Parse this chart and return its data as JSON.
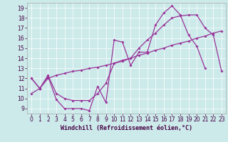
{
  "background_color": "#cceaea",
  "line_color": "#993399",
  "marker": "D",
  "markersize": 2.0,
  "linewidth": 0.9,
  "xlabel": "Windchill (Refroidissement éolien,°C)",
  "xlabel_fontsize": 6.0,
  "tick_fontsize": 5.5,
  "xlim": [
    -0.5,
    23.5
  ],
  "ylim": [
    8.5,
    19.5
  ],
  "xticks": [
    0,
    1,
    2,
    3,
    4,
    5,
    6,
    7,
    8,
    9,
    10,
    11,
    12,
    13,
    14,
    15,
    16,
    17,
    18,
    19,
    20,
    21,
    22,
    23
  ],
  "yticks": [
    9,
    10,
    11,
    12,
    13,
    14,
    15,
    16,
    17,
    18,
    19
  ],
  "series1_x": [
    0,
    1,
    2,
    3,
    4,
    5,
    6,
    7,
    8,
    9,
    10,
    11,
    12,
    13,
    14,
    15,
    16,
    17,
    18,
    19,
    20,
    21
  ],
  "series1_y": [
    12.0,
    11.0,
    12.2,
    9.9,
    9.0,
    9.0,
    9.0,
    8.8,
    11.2,
    9.6,
    15.8,
    15.6,
    13.3,
    14.6,
    14.6,
    17.3,
    18.5,
    19.2,
    18.3,
    16.3,
    15.2,
    13.0
  ],
  "series2_x": [
    0,
    1,
    2,
    3,
    4,
    5,
    6,
    7,
    8,
    9,
    10,
    11,
    12,
    13,
    14,
    15,
    16,
    17,
    18,
    19,
    20,
    21,
    22,
    23
  ],
  "series2_y": [
    12.0,
    11.0,
    12.3,
    10.5,
    10.0,
    9.8,
    9.8,
    9.8,
    10.5,
    11.5,
    13.5,
    13.8,
    14.0,
    15.0,
    15.8,
    16.5,
    17.3,
    18.0,
    18.2,
    18.3,
    18.3,
    17.0,
    16.3,
    12.7
  ],
  "series3_x": [
    0,
    1,
    2,
    3,
    4,
    5,
    6,
    7,
    8,
    9,
    10,
    11,
    12,
    13,
    14,
    15,
    16,
    17,
    18,
    19,
    20,
    21,
    22,
    23
  ],
  "series3_y": [
    10.5,
    11.0,
    12.0,
    12.3,
    12.5,
    12.7,
    12.8,
    13.0,
    13.1,
    13.3,
    13.5,
    13.7,
    14.0,
    14.3,
    14.5,
    14.8,
    15.0,
    15.3,
    15.5,
    15.7,
    16.0,
    16.2,
    16.5,
    16.7
  ]
}
